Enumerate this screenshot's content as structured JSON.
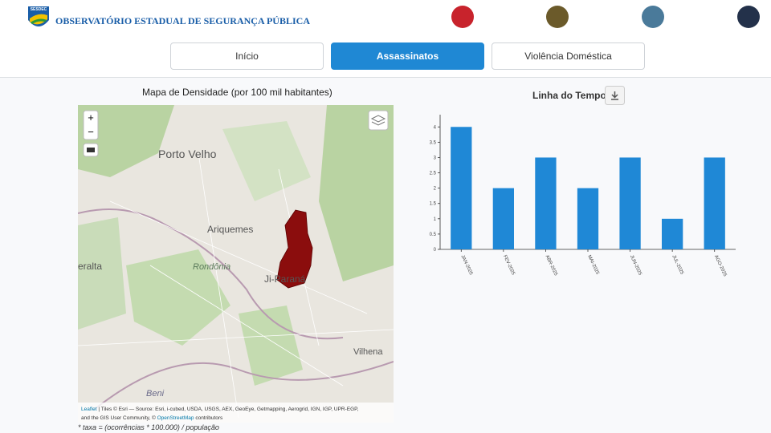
{
  "header": {
    "logo_text": "SESDEC",
    "title": "OBSERVATÓRIO ESTADUAL DE SEGURANÇA PÚBLICA"
  },
  "nav": {
    "tabs": [
      "Início",
      "Assassinatos",
      "Violência Doméstica"
    ]
  },
  "map": {
    "title": "Mapa de Densidade (por 100 mil habitantes)",
    "zoom_in": "+",
    "zoom_out": "−",
    "places": [
      "Porto Velho",
      "Ariquemes",
      "Rondônia",
      "Ji-Paraná",
      "Vilhena",
      "Beni",
      "eralta"
    ],
    "attribution_link": "Leaflet",
    "attribution": "| Tiles © Esri — Source: Esri, i-cubed, USDA, USGS, AEX, GeoEye, Getmapping, Aerogrid, IGN, IGP, UPR-EGP,",
    "attribution_2": "and the GIS User Community, ©",
    "attribution_osm": "OpenStreetMap",
    "attribution_3": "contributors",
    "footnote": "* taxa = (ocorrências * 100.000) / população"
  },
  "chart_data": {
    "type": "bar",
    "title": "Linha do Tempo",
    "categories": [
      "JAN-2025",
      "FEV-2025",
      "ABR-2025",
      "MAI-2025",
      "JUN-2025",
      "JUL-2025",
      "AGO-2025"
    ],
    "values": [
      4,
      2,
      3,
      2,
      3,
      1,
      3
    ],
    "color": "#1f88d6",
    "ylim": [
      0,
      4.4
    ],
    "yticks": [
      0,
      0.5,
      1,
      1.5,
      2,
      2.5,
      3,
      3.5,
      4
    ]
  }
}
